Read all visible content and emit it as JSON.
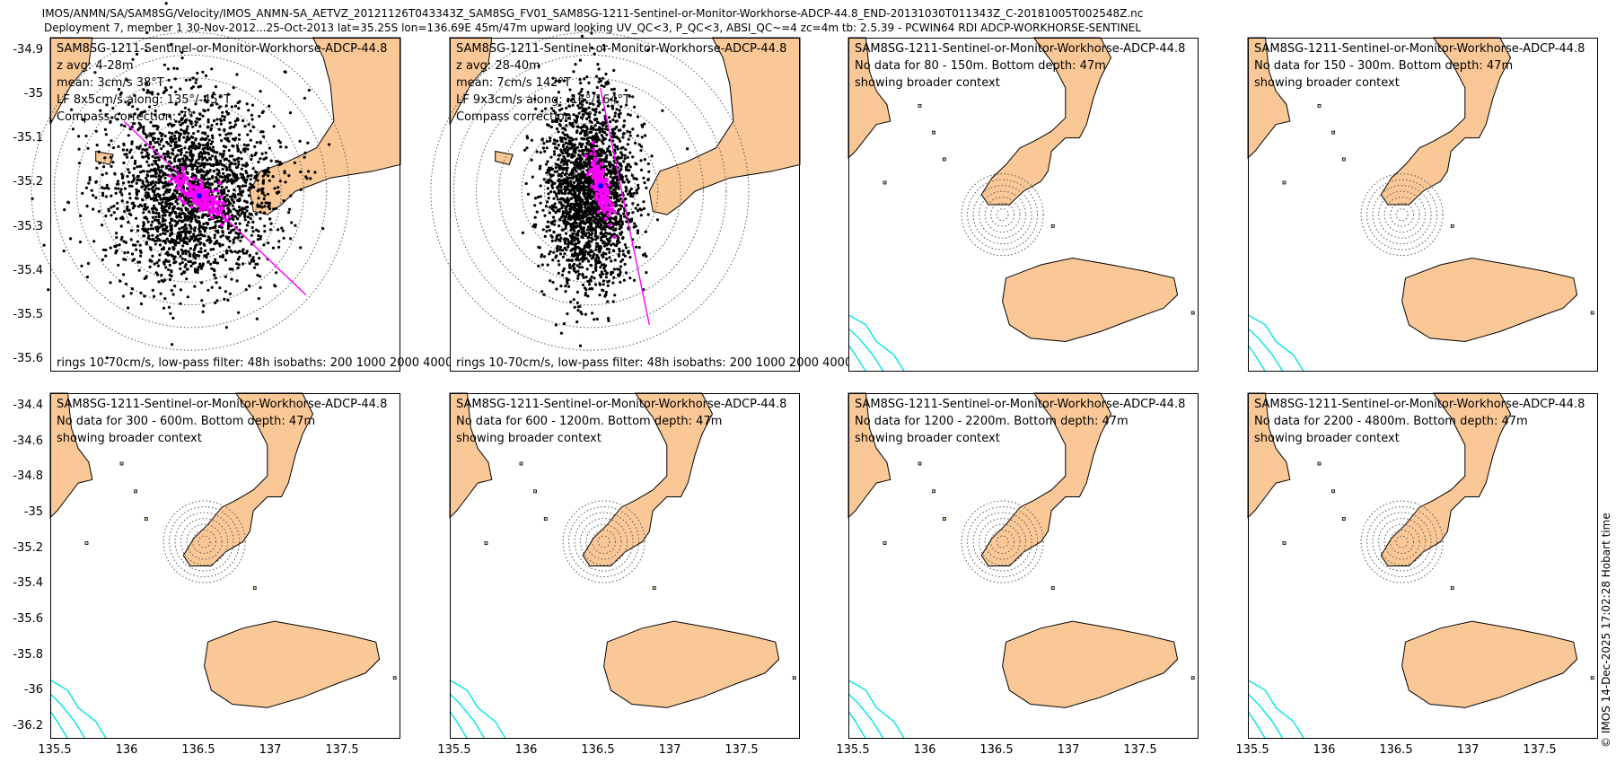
{
  "header": {
    "line1": "IMOS/ANMN/SA/SAM8SG/Velocity/IMOS_ANMN-SA_AETVZ_20121126T043343Z_SAM8SG_FV01_SAM8SG-1211-Sentinel-or-Monitor-Workhorse-ADCP-44.8_END-20131030T011343Z_C-20181005T002548Z.nc",
    "line2": "Deployment 7, member 1 30-Nov-2012...25-Oct-2013 lat=35.25S lon=136.69E 45m/47m upward looking UV_QC<3, P_QC<3, ABSI_QC~=4 zc=4m tb: 2.5.39 - PCWIN64 RDI ADCP-WORKHORSE-SENTINEL"
  },
  "footer": "© IMOS 14-Dec-2025 17:02:28 Hobart time",
  "colors": {
    "land": "#f9c896",
    "coast": "#000000",
    "isobath": "#00e5e5",
    "scatter": "#000000",
    "lowpass": "#ff00ff",
    "mean": "#0000ff",
    "ring": "#555555"
  },
  "axes": {
    "top_yticks": [
      "-34.9",
      "-35",
      "-35.1",
      "-35.2",
      "-35.3",
      "-35.4",
      "-35.5",
      "-35.6"
    ],
    "bottom_yticks": [
      "-34.4",
      "-34.6",
      "-34.8",
      "-35",
      "-35.2",
      "-35.4",
      "-35.6",
      "-35.8",
      "-36",
      "-36.2"
    ],
    "xticks": [
      "135.5",
      "136",
      "136.5",
      "137",
      "137.5"
    ]
  },
  "panels": [
    {
      "label": "SAM8SG-1211-Sentinel-or-Monitor-Workhorse-ADCP-44.8",
      "lines": [
        "z avg: 4-28m",
        "mean: 3cm/s 38°T",
        "LF 8x5cm/s along: 135°/-45°T",
        "Compass correction: 7°"
      ],
      "bottom": "rings 10-70cm/s, low-pass filter: 48h isobaths: 200 1000 2000 4000"
    },
    {
      "label": "SAM8SG-1211-Sentinel-or-Monitor-Workhorse-ADCP-44.8",
      "lines": [
        "z avg: 28-40m",
        "mean: 7cm/s 142°T",
        "LF 9x3cm/s along: -16°/164°T",
        "Compass correction: 7°"
      ],
      "bottom": "rings 10-70cm/s, low-pass filter: 48h isobaths: 200 1000 2000 4000"
    },
    {
      "label": "SAM8SG-1211-Sentinel-or-Monitor-Workhorse-ADCP-44.8",
      "lines": [
        "No data for 80 - 150m. Bottom depth: 47m",
        "showing broader context"
      ],
      "bottom": ""
    },
    {
      "label": "SAM8SG-1211-Sentinel-or-Monitor-Workhorse-ADCP-44.8",
      "lines": [
        "No data for 150 - 300m. Bottom depth: 47m",
        "showing broader context"
      ],
      "bottom": ""
    },
    {
      "label": "SAM8SG-1211-Sentinel-or-Monitor-Workhorse-ADCP-44.8",
      "lines": [
        "No data for 300 - 600m. Bottom depth: 47m",
        "showing broader context"
      ],
      "bottom": ""
    },
    {
      "label": "SAM8SG-1211-Sentinel-or-Monitor-Workhorse-ADCP-44.8",
      "lines": [
        "No data for 600 - 1200m. Bottom depth: 47m",
        "showing broader context"
      ],
      "bottom": ""
    },
    {
      "label": "SAM8SG-1211-Sentinel-or-Monitor-Workhorse-ADCP-44.8",
      "lines": [
        "No data for 1200 - 2200m. Bottom depth: 47m",
        "showing broader context"
      ],
      "bottom": ""
    },
    {
      "label": "SAM8SG-1211-Sentinel-or-Monitor-Workhorse-ADCP-44.8",
      "lines": [
        "No data for 2200 - 4800m. Bottom depth: 47m",
        "showing broader context"
      ],
      "bottom": ""
    }
  ],
  "chart_data": {
    "type": "scatter",
    "xlabel": "",
    "ylabel": "",
    "station": {
      "lon": 136.69,
      "lat": -35.25
    },
    "panels": [
      {
        "id": 1,
        "xlim": [
          135.5,
          137.9
        ],
        "ylim": [
          -35.6,
          -34.85
        ],
        "mean_speed_cms": 3,
        "mean_dir_degT": 38,
        "lf_major_cms": 8,
        "lf_minor_cms": 5,
        "along_deg": 135,
        "rings_cms": [
          10,
          20,
          30,
          40,
          50,
          60,
          70
        ]
      },
      {
        "id": 2,
        "xlim": [
          135.5,
          137.9
        ],
        "ylim": [
          -35.6,
          -34.85
        ],
        "mean_speed_cms": 7,
        "mean_dir_degT": 142,
        "lf_major_cms": 9,
        "lf_minor_cms": 3,
        "along_deg": -16,
        "rings_cms": [
          10,
          20,
          30,
          40,
          50,
          60,
          70
        ]
      },
      {
        "id": 3,
        "xlim": [
          135.5,
          137.9
        ],
        "ylim": [
          -36.25,
          -34.3
        ]
      },
      {
        "id": 4,
        "xlim": [
          135.5,
          137.9
        ],
        "ylim": [
          -36.25,
          -34.3
        ]
      },
      {
        "id": 5,
        "xlim": [
          135.5,
          137.9
        ],
        "ylim": [
          -36.25,
          -34.3
        ]
      },
      {
        "id": 6,
        "xlim": [
          135.5,
          137.9
        ],
        "ylim": [
          -36.25,
          -34.3
        ]
      },
      {
        "id": 7,
        "xlim": [
          135.5,
          137.9
        ],
        "ylim": [
          -36.25,
          -34.3
        ]
      },
      {
        "id": 8,
        "xlim": [
          135.5,
          137.9
        ],
        "ylim": [
          -36.25,
          -34.3
        ]
      }
    ]
  }
}
